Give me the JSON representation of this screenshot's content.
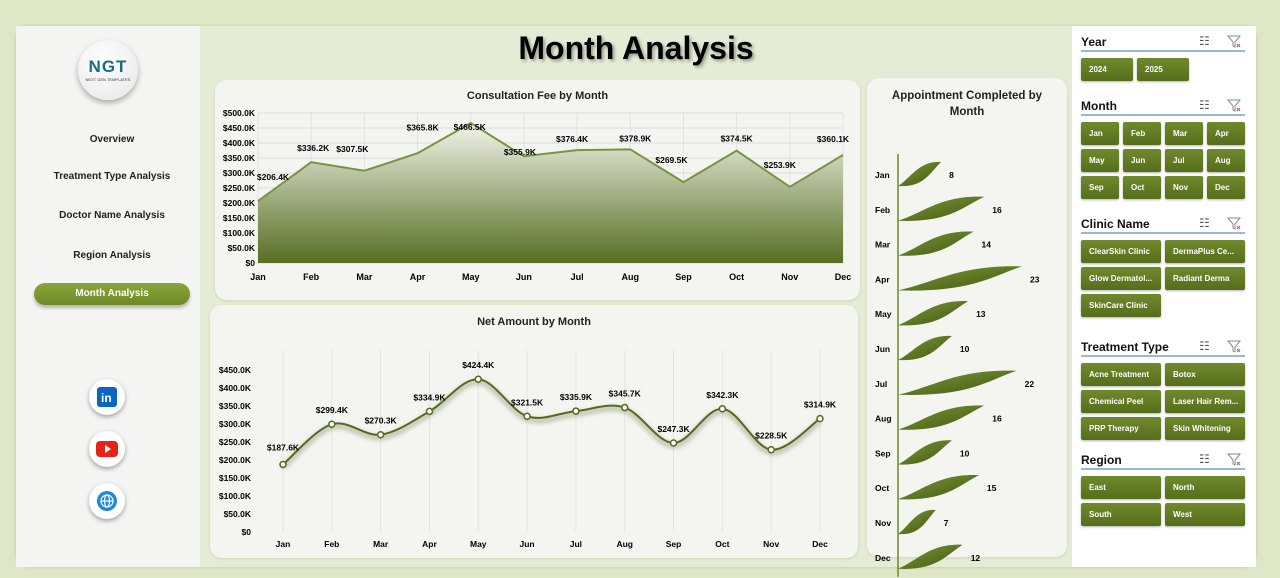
{
  "title": "Month Analysis",
  "logo": {
    "text": "NGT",
    "sub": "NEXT GEN TEMPLATES"
  },
  "nav": [
    {
      "label": "Overview"
    },
    {
      "label": "Treatment Type Analysis"
    },
    {
      "label": "Doctor Name Analysis"
    },
    {
      "label": "Region Analysis"
    },
    {
      "label": "Month Analysis",
      "active": true
    }
  ],
  "social": [
    "linkedin-icon",
    "youtube-icon",
    "globe-icon"
  ],
  "colors": {
    "accent": "#6d8a27",
    "line": "#7a9340",
    "leaf": "#5d7a22"
  },
  "chart_data": [
    {
      "type": "area",
      "title": "Consultation Fee by Month",
      "categories": [
        "Jan",
        "Feb",
        "Mar",
        "Apr",
        "May",
        "Jun",
        "Jul",
        "Aug",
        "Sep",
        "Oct",
        "Nov",
        "Dec"
      ],
      "values": [
        206.4,
        336.2,
        307.5,
        365.8,
        466.5,
        355.9,
        376.4,
        378.9,
        269.5,
        374.5,
        253.9,
        360.1
      ],
      "labels": [
        "$206.4K",
        "$336.2K",
        "$307.5K",
        "$365.8K",
        "$466.5K",
        "$355.9K",
        "$376.4K",
        "$378.9K",
        "$269.5K",
        "$374.5K",
        "$253.9K",
        "$360.1K"
      ],
      "unit": "$K",
      "ylim": [
        0,
        500
      ],
      "yticks": [
        "$0",
        "$50.0K",
        "$100.0K",
        "$150.0K",
        "$200.0K",
        "$250.0K",
        "$300.0K",
        "$350.0K",
        "$400.0K",
        "$450.0K",
        "$500.0K"
      ],
      "grid": true
    },
    {
      "type": "line",
      "title": "Net Amount by Month",
      "categories": [
        "Jan",
        "Feb",
        "Mar",
        "Apr",
        "May",
        "Jun",
        "Jul",
        "Aug",
        "Sep",
        "Oct",
        "Nov",
        "Dec"
      ],
      "values": [
        187.6,
        299.4,
        270.3,
        334.9,
        424.4,
        321.5,
        335.9,
        345.7,
        247.3,
        342.3,
        228.5,
        314.9
      ],
      "labels": [
        "$187.6K",
        "$299.4K",
        "$270.3K",
        "$334.9K",
        "$424.4K",
        "$321.5K",
        "$335.9K",
        "$345.7K",
        "$247.3K",
        "$342.3K",
        "$228.5K",
        "$314.9K"
      ],
      "unit": "$K",
      "ylim": [
        0,
        450
      ],
      "yticks": [
        "$0",
        "$50.0K",
        "$100.0K",
        "$150.0K",
        "$200.0K",
        "$250.0K",
        "$300.0K",
        "$350.0K",
        "$400.0K",
        "$450.0K"
      ],
      "grid": true,
      "smooth": true
    },
    {
      "type": "bar",
      "orientation": "horizontal",
      "title": "Appointment Completed by Month",
      "categories": [
        "Jan",
        "Feb",
        "Mar",
        "Apr",
        "May",
        "Jun",
        "Jul",
        "Aug",
        "Sep",
        "Oct",
        "Nov",
        "Dec"
      ],
      "values": [
        8,
        16,
        14,
        23,
        13,
        10,
        22,
        16,
        10,
        15,
        7,
        12
      ]
    }
  ],
  "filters": [
    {
      "title": "Year",
      "cls": "w2y",
      "items": [
        "2024",
        "2025"
      ]
    },
    {
      "title": "Month",
      "cls": "w4",
      "items": [
        "Jan",
        "Feb",
        "Mar",
        "Apr",
        "May",
        "Jun",
        "Jul",
        "Aug",
        "Sep",
        "Oct",
        "Nov",
        "Dec"
      ]
    },
    {
      "title": "Clinic Name",
      "cls": "w2",
      "items": [
        "ClearSkin Clinic",
        "DermaPlus Ce...",
        "Glow Dermatol...",
        "Radiant Derma",
        "SkinCare Clinic"
      ]
    },
    {
      "title": "Treatment Type",
      "cls": "w2",
      "items": [
        "Acne Treatment",
        "Botox",
        "Chemical Peel",
        "Laser Hair Rem...",
        "PRP Therapy",
        "Skin Whitening"
      ]
    },
    {
      "title": "Region",
      "cls": "w2",
      "items": [
        "East",
        "North",
        "South",
        "West"
      ]
    }
  ]
}
